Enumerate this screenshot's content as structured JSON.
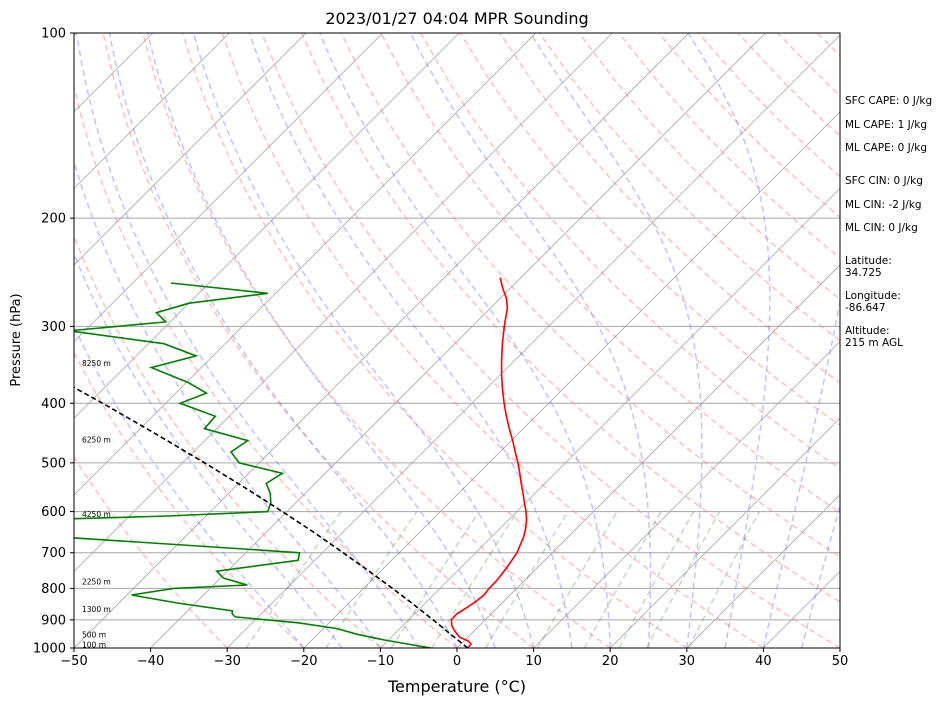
{
  "title": "2023/01/27 04:04 MPR Sounding",
  "stats": [
    {
      "text": "SFC CAPE: 0 J/kg"
    },
    {
      "text": "ML CAPE: 1 J/kg"
    },
    {
      "text": "ML CAPE: 0 J/kg"
    },
    {
      "text": "SFC CIN: 0 J/kg"
    },
    {
      "text": "ML CIN: -2 J/kg"
    },
    {
      "text": "ML CIN: 0 J/kg"
    },
    {
      "text": "Latitude:\n34.725"
    },
    {
      "text": "Longitude:\n-86.647"
    },
    {
      "text": "Altitude:\n215 m AGL"
    }
  ],
  "chart_data": {
    "type": "line",
    "title": "2023/01/27 04:04 MPR Sounding",
    "xlabel": "Temperature (°C)",
    "ylabel": "Pressure (hPa)",
    "xlim": [
      -50,
      50
    ],
    "ylim": [
      1000,
      100
    ],
    "y_scale": "log",
    "skew": "skew-T log-p",
    "x_ticks": [
      -50,
      -40,
      -30,
      -20,
      -10,
      0,
      10,
      20,
      30,
      40,
      50
    ],
    "y_ticks": [
      100,
      200,
      300,
      400,
      500,
      600,
      700,
      800,
      900,
      1000
    ],
    "height_labels": [
      {
        "p": 990,
        "label": "100 m"
      },
      {
        "p": 955,
        "label": "500 m"
      },
      {
        "p": 867,
        "label": "1300 m"
      },
      {
        "p": 782,
        "label": "2250 m"
      },
      {
        "p": 608,
        "label": "4250 m"
      },
      {
        "p": 460,
        "label": "6250 m"
      },
      {
        "p": 345,
        "label": "8250 m"
      }
    ],
    "series": [
      {
        "role": "temperature",
        "color": "#ff0000",
        "p": [
          1000,
          985,
          975,
          960,
          940,
          920,
          900,
          880,
          860,
          840,
          820,
          800,
          780,
          760,
          740,
          720,
          700,
          680,
          660,
          640,
          620,
          600,
          580,
          560,
          540,
          520,
          500,
          480,
          460,
          440,
          420,
          400,
          380,
          360,
          340,
          320,
          300,
          290,
          280,
          270,
          260,
          250
        ],
        "t": [
          1.4,
          1.3,
          0.6,
          -1.1,
          -2.4,
          -3.6,
          -4.4,
          -4.5,
          -4.0,
          -3.6,
          -3.4,
          -3.6,
          -3.6,
          -3.8,
          -4.0,
          -4.3,
          -4.6,
          -5.2,
          -5.8,
          -6.6,
          -7.6,
          -8.8,
          -10.2,
          -11.6,
          -13.1,
          -14.6,
          -16.2,
          -18.0,
          -19.8,
          -21.8,
          -23.8,
          -25.8,
          -27.8,
          -29.8,
          -31.8,
          -33.8,
          -35.8,
          -36.8,
          -37.8,
          -39.2,
          -41.0,
          -42.7
        ]
      },
      {
        "role": "dewpoint",
        "color": "#008000",
        "p": [
          1000,
          985,
          970,
          950,
          930,
          910,
          890,
          880,
          870,
          845,
          820,
          800,
          790,
          770,
          750,
          720,
          700,
          680,
          660,
          640,
          622,
          610,
          600,
          580,
          560,
          540,
          520,
          500,
          480,
          460,
          440,
          420,
          400,
          385,
          370,
          350,
          335,
          320,
          305,
          295,
          285,
          275,
          265,
          255
        ],
        "t": [
          -3.4,
          -7.0,
          -10.6,
          -14.8,
          -18.2,
          -24.0,
          -33.0,
          -33.8,
          -34.2,
          -42.4,
          -49.4,
          -44.8,
          -35.6,
          -39.6,
          -41.4,
          -32.2,
          -33.0,
          -49.2,
          -66.4,
          -73.8,
          -77.6,
          -55.0,
          -42.5,
          -43.3,
          -44.6,
          -46.4,
          -45.6,
          -52.6,
          -55.1,
          -54.4,
          -61.6,
          -61.8,
          -68.1,
          -66.0,
          -69.8,
          -76.5,
          -72.2,
          -78.0,
          -92.0,
          -80.6,
          -83.0,
          -80.0,
          -71.0,
          -85.0
        ]
      },
      {
        "role": "parcel",
        "color": "#000000",
        "style": "dashed",
        "p": [
          1000,
          950,
          900,
          850,
          800,
          750,
          700,
          650,
          600,
          550,
          500,
          450,
          400,
          350,
          300,
          290
        ],
        "t": [
          1.4,
          -2.6,
          -6.8,
          -11.3,
          -16.2,
          -21.5,
          -27.3,
          -33.6,
          -40.6,
          -48.4,
          -57.1,
          -67.0,
          -78.2,
          -91.3,
          -106.8,
          -110.3
        ]
      }
    ],
    "background": {
      "isotherms": "gray solid",
      "dry_adiabats": "red dashed",
      "moist_adiabats": "blue dashed",
      "mixing_ratio": "green dashed",
      "isobars": "gray solid"
    }
  }
}
